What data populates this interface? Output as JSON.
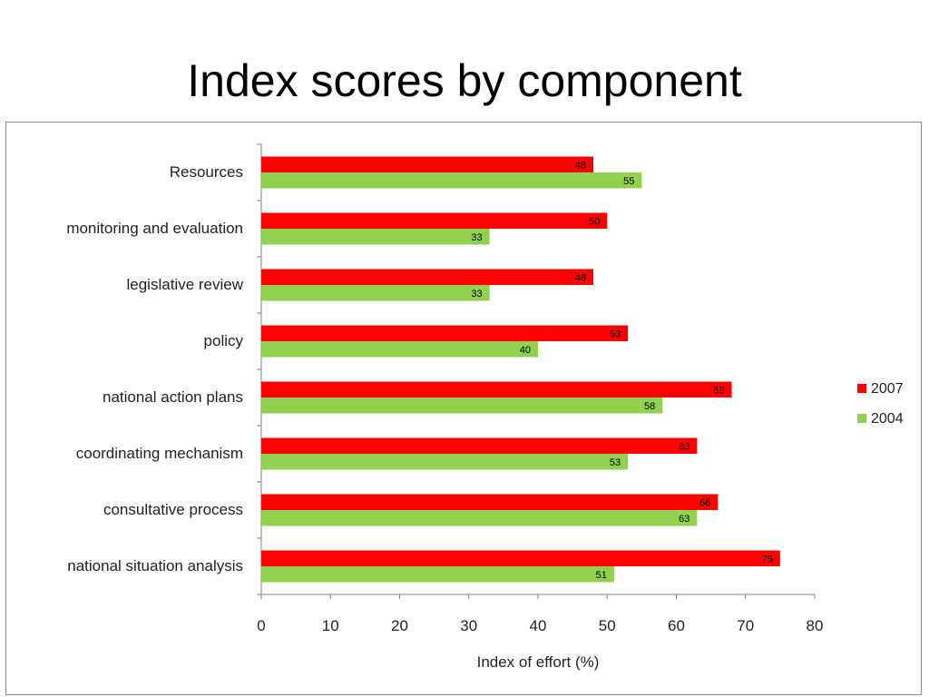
{
  "title": "Index scores by component",
  "chart_data": {
    "type": "bar",
    "orientation": "horizontal",
    "title": "Index scores by component",
    "xlabel": "Index of effort (%)",
    "ylabel": "",
    "xlim": [
      0,
      80
    ],
    "xticks": [
      0,
      10,
      20,
      30,
      40,
      50,
      60,
      70,
      80
    ],
    "grid": false,
    "legend_position": "right",
    "categories": [
      "Resources",
      "monitoring and evaluation",
      "legislative review",
      "policy",
      "national action plans",
      "coordinating mechanism",
      "consultative process",
      "national situation analysis"
    ],
    "series": [
      {
        "name": "2007",
        "color": "#ff0000",
        "values": [
          48,
          50,
          48,
          53,
          68,
          63,
          66,
          75
        ]
      },
      {
        "name": "2004",
        "color": "#92d050",
        "values": [
          55,
          33,
          33,
          40,
          58,
          53,
          63,
          51
        ]
      }
    ]
  }
}
